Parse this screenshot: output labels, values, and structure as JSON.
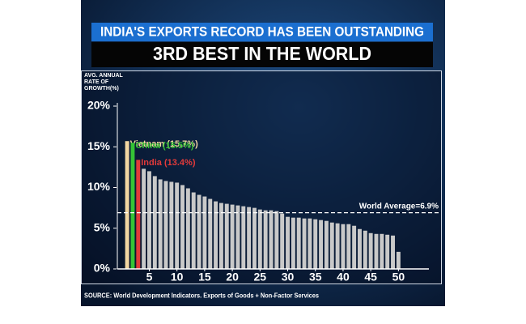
{
  "chart_data": {
    "type": "bar",
    "title": "INDIA'S EXPORTS RECORD HAS BEEN OUTSTANDING",
    "subtitle": "3RD BEST IN THE WORLD",
    "y_label": [
      "AVG. ANNUAL",
      "RATE OF",
      "GROWTH(%)"
    ],
    "x": [
      1,
      2,
      3,
      4,
      5,
      6,
      7,
      8,
      9,
      10,
      11,
      12,
      13,
      14,
      15,
      16,
      17,
      18,
      19,
      20,
      21,
      22,
      23,
      24,
      25,
      26,
      27,
      28,
      29,
      30,
      31,
      32,
      33,
      34,
      35,
      36,
      37,
      38,
      39,
      40,
      41,
      42,
      43,
      44,
      45,
      46,
      47,
      48,
      49,
      50
    ],
    "values": [
      15.7,
      15.5,
      13.4,
      12.3,
      12.0,
      11.4,
      11.0,
      10.8,
      10.7,
      10.6,
      10.3,
      9.9,
      9.4,
      9.1,
      8.9,
      8.6,
      8.3,
      8.1,
      8.0,
      7.9,
      7.8,
      7.7,
      7.6,
      7.5,
      7.3,
      7.2,
      7.2,
      7.1,
      6.8,
      6.4,
      6.3,
      6.3,
      6.2,
      6.2,
      6.1,
      6.0,
      5.9,
      5.7,
      5.6,
      5.5,
      5.5,
      5.3,
      4.9,
      4.7,
      4.4,
      4.3,
      4.3,
      4.2,
      4.1,
      2.1
    ],
    "value_labels": [
      "Vietnam (15.7%)",
      "China (15.5%)",
      "India (13.4%)",
      null,
      null,
      null,
      null,
      null,
      null,
      null,
      null,
      null,
      null,
      null,
      null,
      null,
      null,
      null,
      null,
      null,
      null,
      null,
      null,
      null,
      null,
      null,
      null,
      null,
      null,
      null,
      null,
      null,
      null,
      null,
      null,
      null,
      null,
      null,
      null,
      null,
      null,
      null,
      null,
      null,
      null,
      null,
      null,
      null,
      null,
      null
    ],
    "colors": [
      "#f2d6a2",
      "#35c435",
      "#e23a3a",
      "#c9c9c9",
      "#c9c9c9",
      "#c9c9c9",
      "#c9c9c9",
      "#c9c9c9",
      "#c9c9c9",
      "#c9c9c9",
      "#c9c9c9",
      "#c9c9c9",
      "#c9c9c9",
      "#c9c9c9",
      "#c9c9c9",
      "#c9c9c9",
      "#c9c9c9",
      "#c9c9c9",
      "#c9c9c9",
      "#c9c9c9",
      "#c9c9c9",
      "#c9c9c9",
      "#c9c9c9",
      "#c9c9c9",
      "#c9c9c9",
      "#c9c9c9",
      "#c9c9c9",
      "#c9c9c9",
      "#c9c9c9",
      "#c9c9c9",
      "#c9c9c9",
      "#c9c9c9",
      "#c9c9c9",
      "#c9c9c9",
      "#c9c9c9",
      "#c9c9c9",
      "#c9c9c9",
      "#c9c9c9",
      "#c9c9c9",
      "#c9c9c9",
      "#c9c9c9",
      "#c9c9c9",
      "#c9c9c9",
      "#c9c9c9",
      "#c9c9c9",
      "#c9c9c9",
      "#c9c9c9",
      "#c9c9c9",
      "#c9c9c9",
      "#c9c9c9"
    ],
    "xlim": [
      -1.5,
      55.5
    ],
    "xticks": [
      5,
      10,
      15,
      20,
      25,
      30,
      35,
      40,
      45,
      50
    ],
    "ylim": [
      0,
      20
    ],
    "yticks": [
      {
        "value": 0,
        "label": "0%"
      },
      {
        "value": 5,
        "label": "5%"
      },
      {
        "value": 10,
        "label": "10%"
      },
      {
        "value": 15,
        "label": "15%"
      },
      {
        "value": 20,
        "label": "20%"
      }
    ],
    "reference_line": {
      "value": 6.9,
      "label": "World Average=6.9%"
    },
    "source": "SOURCE: World Development Indicators. Exports of Goods + Non-Factor Services"
  }
}
